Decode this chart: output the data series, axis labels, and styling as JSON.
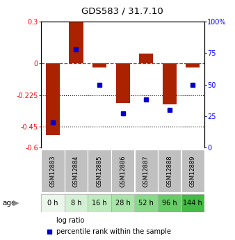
{
  "title": "GDS583 / 31.7.10",
  "samples": [
    "GSM12883",
    "GSM12884",
    "GSM12885",
    "GSM12886",
    "GSM12887",
    "GSM12888",
    "GSM12889"
  ],
  "ages": [
    "0 h",
    "8 h",
    "16 h",
    "28 h",
    "52 h",
    "96 h",
    "144 h"
  ],
  "log_ratio": [
    -0.51,
    0.3,
    -0.03,
    -0.28,
    0.07,
    -0.29,
    -0.03
  ],
  "percentile_rank": [
    20,
    78,
    50,
    27,
    38,
    30,
    50
  ],
  "left_yticks": [
    0.3,
    0.0,
    -0.225,
    -0.45,
    -0.6
  ],
  "left_yticklabels": [
    "0.3",
    "0",
    "-0.225",
    "-0.45",
    "-0.6"
  ],
  "right_yticks": [
    100,
    75,
    50,
    25,
    0
  ],
  "right_yticklabels": [
    "100%",
    "75",
    "50",
    "25",
    "0"
  ],
  "ylim_left": [
    -0.6,
    0.3
  ],
  "ylim_right": [
    0,
    100
  ],
  "bar_color": "#aa2200",
  "dot_color": "#0000cc",
  "dashed_line_color": "#cc2200",
  "dotted_line_color": "#000000",
  "age_colors": [
    "#eaf7ea",
    "#d4f0d4",
    "#beeabe",
    "#a8e4a8",
    "#88da88",
    "#66cc66",
    "#44bb44"
  ],
  "gsm_bg_color": "#c0c0c0",
  "legend_log_ratio": "log ratio",
  "legend_pct": "percentile rank within the sample"
}
